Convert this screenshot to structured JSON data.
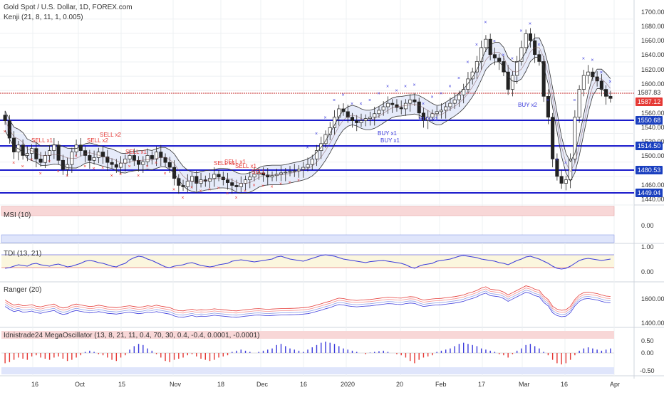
{
  "header": {
    "title": "Gold Spot / U.S. Dollar, 1D, FOREX.com",
    "indicator": "Kenji (21, 8, 11, 1, 0.005)"
  },
  "panes": {
    "msi": "MSI (10)",
    "tdi": "TDI (13, 21)",
    "ranger": "Ranger (20)",
    "mega": "Idnistrade24 MegaOscillator (13, 8, 21, 11, 0.4, 70, 30, 0.4, -0.4, 0.0001, -0.0001)"
  },
  "price_axis": [
    "1700.00",
    "1680.00",
    "1660.00",
    "1640.00",
    "1620.00",
    "1600.00",
    "1580.00",
    "1560.00",
    "1540.00",
    "1520.00",
    "1500.00",
    "1480.00",
    "1460.00",
    "1440.00"
  ],
  "price_tags": [
    {
      "label": "1587.83",
      "color": "#c62828",
      "kind": "line"
    },
    {
      "label": "1587.12",
      "color": "#e53935",
      "kind": "tag"
    },
    {
      "label": "1550.68",
      "color": "#1a3fbf",
      "kind": "tag"
    },
    {
      "label": "1514.50",
      "color": "#1a3fbf",
      "kind": "tag"
    },
    {
      "label": "1480.53",
      "color": "#1a3fbf",
      "kind": "tag"
    },
    {
      "label": "1449.04",
      "color": "#1a3fbf",
      "kind": "tag"
    }
  ],
  "msi_axis": [
    "0.00"
  ],
  "tdi_axis": [
    "1.00",
    "0.00"
  ],
  "ranger_axis": [
    "1600.00",
    "1400.00"
  ],
  "mega_axis": [
    "0.50",
    "0.00",
    "-0.50"
  ],
  "x_axis": [
    "16",
    "Oct",
    "15",
    "Nov",
    "18",
    "Dec",
    "16",
    "2020",
    "20",
    "Feb",
    "17",
    "Mar",
    "16",
    "Apr"
  ],
  "annotations": {
    "sell": [
      "SELL x1",
      "SELL x2",
      "SELL x2",
      "SELL x1",
      "SELL x1",
      "SELL x1",
      "SELL x1",
      "SELL"
    ],
    "buy": [
      "BUY x1",
      "BUY x1",
      "BUY x1",
      "BUY x2"
    ]
  },
  "colors": {
    "up": "#ffffff",
    "down": "#222222",
    "hline": "#1a1acc",
    "resistance": "#c62828",
    "cloud_blue": "#c7d3f5",
    "cloud_red": "#f6d3d3",
    "marker_blue": "#3b3bdc",
    "marker_red": "#e53935",
    "sell_text": "#e53935",
    "buy_text": "#3b3bdc"
  },
  "chart_data": {
    "type": "candlestick",
    "title": "Gold Spot / U.S. Dollar, 1D, FOREX.com",
    "ylim": [
      1435,
      1710
    ],
    "horizontal_levels": [
      1587.83,
      1550.68,
      1514.5,
      1480.53,
      1449.04
    ],
    "last_price": 1587.12,
    "closes": [
      1555,
      1530,
      1510,
      1520,
      1505,
      1508,
      1515,
      1500,
      1495,
      1505,
      1512,
      1520,
      1498,
      1485,
      1492,
      1510,
      1520,
      1512,
      1505,
      1498,
      1502,
      1510,
      1503,
      1495,
      1492,
      1488,
      1494,
      1500,
      1505,
      1498,
      1492,
      1496,
      1505,
      1500,
      1510,
      1502,
      1495,
      1488,
      1472,
      1462,
      1460,
      1468,
      1475,
      1465,
      1470,
      1468,
      1472,
      1478,
      1474,
      1470,
      1466,
      1462,
      1460,
      1465,
      1470,
      1474,
      1478,
      1480,
      1477,
      1474,
      1476,
      1478,
      1480,
      1481,
      1482,
      1483,
      1485,
      1488,
      1492,
      1500,
      1512,
      1522,
      1535,
      1545,
      1560,
      1572,
      1568,
      1560,
      1555,
      1552,
      1555,
      1558,
      1560,
      1565,
      1570,
      1575,
      1580,
      1578,
      1574,
      1572,
      1580,
      1585,
      1582,
      1566,
      1555,
      1560,
      1565,
      1568,
      1570,
      1575,
      1580,
      1585,
      1592,
      1600,
      1615,
      1625,
      1640,
      1660,
      1672,
      1650,
      1645,
      1640,
      1625,
      1600,
      1620,
      1640,
      1660,
      1680,
      1670,
      1650,
      1640,
      1590,
      1560,
      1500,
      1475,
      1465,
      1470,
      1500,
      1560,
      1600,
      1620,
      1625,
      1618,
      1612,
      1600,
      1590,
      1587
    ],
    "mega_oscillator": [
      -0.45,
      -0.4,
      -0.3,
      -0.2,
      -0.25,
      -0.3,
      -0.15,
      -0.1,
      -0.2,
      -0.25,
      -0.3,
      -0.2,
      -0.15,
      -0.25,
      -0.35,
      -0.3,
      -0.2,
      -0.1,
      0.05,
      0.1,
      0.05,
      -0.05,
      -0.1,
      -0.2,
      -0.3,
      -0.35,
      -0.2,
      -0.1,
      0.15,
      0.3,
      0.4,
      0.35,
      0.2,
      0.1,
      -0.05,
      -0.2,
      -0.35,
      -0.4,
      -0.3,
      -0.25,
      -0.2,
      -0.1,
      -0.05,
      -0.15,
      -0.25,
      -0.3,
      -0.35,
      -0.3,
      -0.2,
      -0.15,
      -0.1,
      0.05,
      0.1,
      0.15,
      0.1,
      0.05,
      0.0,
      0.05,
      0.1,
      0.15,
      0.2,
      0.35,
      0.4,
      0.3,
      0.2,
      0.15,
      0.1,
      0.05,
      0.15,
      0.25,
      0.35,
      0.45,
      0.5,
      0.45,
      0.4,
      0.3,
      0.2,
      0.15,
      0.1,
      0.05,
      0.0,
      -0.05,
      0.02,
      0.05,
      0.08,
      0.1,
      0.05,
      0.0,
      -0.05,
      -0.1,
      -0.2,
      -0.35,
      -0.45,
      -0.3,
      -0.2,
      -0.15,
      -0.1,
      0.05,
      0.1,
      0.15,
      0.2,
      0.3,
      0.4,
      0.45,
      0.4,
      0.35,
      0.3,
      0.2,
      0.15,
      0.1,
      0.05,
      -0.05,
      -0.1,
      -0.2,
      -0.05,
      0.1,
      0.2,
      0.35,
      0.4,
      0.3,
      0.2,
      0.05,
      -0.1,
      -0.3,
      -0.45,
      -0.5,
      -0.45,
      -0.3,
      -0.1,
      0.1,
      0.2,
      0.25,
      0.2,
      0.15,
      0.1,
      0.15,
      0.2
    ]
  }
}
